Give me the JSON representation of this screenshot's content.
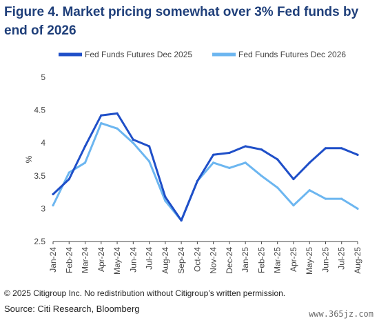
{
  "title": "Figure 4. Market pricing somewhat over 3% Fed funds by end of 2026",
  "footer": {
    "copyright": "© 2025 Citigroup Inc. No redistribution without Citigroup’s written permission.",
    "source": "Source: Citi Research, Bloomberg",
    "watermark": "www.365jz.com"
  },
  "chart_data": {
    "type": "line",
    "title": "Figure 4. Market pricing somewhat over 3% Fed funds by end of 2026",
    "xlabel": "",
    "ylabel": "%",
    "ylim": [
      2.5,
      5
    ],
    "yticks": [
      "2.5",
      "3",
      "3.5",
      "4",
      "4.5",
      "5"
    ],
    "grid": false,
    "legend": "top",
    "x": [
      "Jan-24",
      "Feb-24",
      "Mar-24",
      "Apr-24",
      "May-24",
      "Jun-24",
      "Jul-24",
      "Aug-24",
      "Sep-24",
      "Oct-24",
      "Nov-24",
      "Dec-24",
      "Jan-25",
      "Feb-25",
      "Mar-25",
      "Apr-25",
      "May-25",
      "Jun-25",
      "Jul-25",
      "Aug-25"
    ],
    "series": [
      {
        "name": "Fed Funds Futures Dec 2025",
        "color": "#1f4fc8",
        "values": [
          3.22,
          3.45,
          3.95,
          4.42,
          4.45,
          4.05,
          3.95,
          3.18,
          2.82,
          3.42,
          3.82,
          3.85,
          3.95,
          3.9,
          3.75,
          3.45,
          3.7,
          3.92,
          3.92,
          3.82
        ]
      },
      {
        "name": "Fed Funds Futures Dec 2026",
        "color": "#6cb6f0",
        "values": [
          3.05,
          3.55,
          3.7,
          4.3,
          4.22,
          4.0,
          3.72,
          3.12,
          2.82,
          3.42,
          3.7,
          3.62,
          3.7,
          3.5,
          3.32,
          3.05,
          3.28,
          3.15,
          3.15,
          3.0
        ]
      }
    ]
  }
}
